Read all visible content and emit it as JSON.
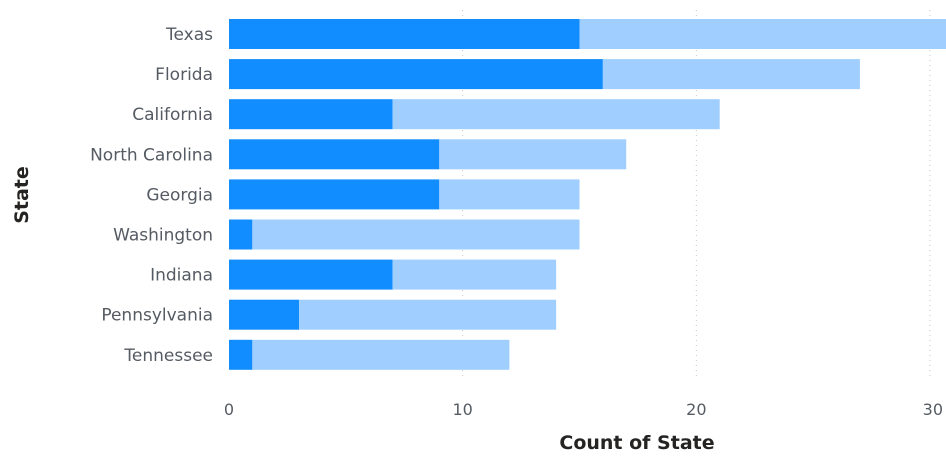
{
  "chart_data": {
    "type": "bar",
    "orientation": "horizontal",
    "stacked": true,
    "xlabel": "Count of State",
    "ylabel": "State",
    "xlim": [
      0,
      30
    ],
    "xticks": [
      "0",
      "10",
      "20",
      "30"
    ],
    "grid": true,
    "categories": [
      "Texas",
      "Florida",
      "California",
      "North Carolina",
      "Georgia",
      "Washington",
      "Indiana",
      "Pennsylvania",
      "Tennessee"
    ],
    "series": [
      {
        "values": [
          15,
          16,
          7,
          9,
          9,
          1,
          7,
          3,
          1
        ],
        "color": "#118dff"
      },
      {
        "values": [
          16,
          11,
          14,
          8,
          6,
          14,
          7,
          11,
          11
        ],
        "color": "#a0cfff"
      }
    ]
  }
}
